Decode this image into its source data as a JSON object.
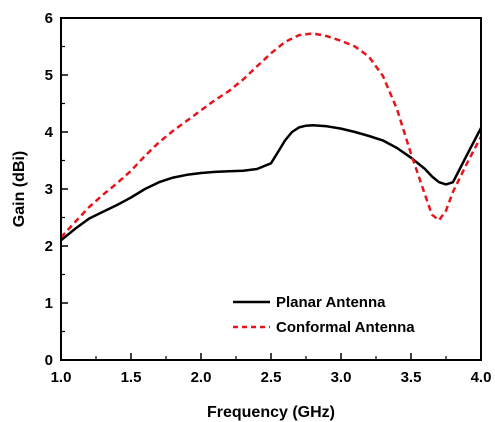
{
  "chart_data": {
    "type": "line",
    "title": "",
    "xlabel": "Frequency (GHz)",
    "ylabel": "Gain (dBi)",
    "xlim": [
      1.0,
      4.0
    ],
    "ylim": [
      0,
      6
    ],
    "xticks": [
      "1.0",
      "1.5",
      "2.0",
      "2.5",
      "3.0",
      "3.5",
      "4.0"
    ],
    "yticks": [
      "0",
      "1",
      "2",
      "3",
      "4",
      "5",
      "6"
    ],
    "grid": false,
    "legend_position": "bottom-right",
    "series": [
      {
        "name": "Planar Antenna",
        "color": "#000000",
        "style": "solid",
        "x": [
          1.0,
          1.1,
          1.2,
          1.3,
          1.4,
          1.5,
          1.6,
          1.7,
          1.8,
          1.9,
          2.0,
          2.1,
          2.2,
          2.3,
          2.4,
          2.5,
          2.55,
          2.6,
          2.65,
          2.7,
          2.75,
          2.8,
          2.9,
          3.0,
          3.1,
          3.2,
          3.3,
          3.4,
          3.5,
          3.6,
          3.65,
          3.7,
          3.75,
          3.8,
          3.9,
          4.0
        ],
        "y": [
          2.1,
          2.3,
          2.48,
          2.6,
          2.72,
          2.85,
          3.0,
          3.12,
          3.2,
          3.25,
          3.28,
          3.3,
          3.31,
          3.32,
          3.35,
          3.45,
          3.65,
          3.85,
          4.0,
          4.08,
          4.11,
          4.12,
          4.1,
          4.06,
          4.0,
          3.93,
          3.85,
          3.72,
          3.55,
          3.35,
          3.22,
          3.12,
          3.08,
          3.12,
          3.6,
          4.07
        ]
      },
      {
        "name": "Conformal Antenna",
        "color": "#e8141b",
        "style": "dashed",
        "x": [
          1.0,
          1.1,
          1.2,
          1.3,
          1.4,
          1.5,
          1.6,
          1.7,
          1.8,
          1.9,
          2.0,
          2.1,
          2.2,
          2.3,
          2.4,
          2.5,
          2.6,
          2.7,
          2.8,
          2.9,
          3.0,
          3.1,
          3.2,
          3.3,
          3.4,
          3.5,
          3.6,
          3.65,
          3.7,
          3.75,
          3.8,
          3.9,
          4.0
        ],
        "y": [
          2.15,
          2.42,
          2.68,
          2.9,
          3.1,
          3.32,
          3.58,
          3.82,
          4.02,
          4.2,
          4.38,
          4.56,
          4.72,
          4.92,
          5.15,
          5.38,
          5.58,
          5.7,
          5.73,
          5.68,
          5.6,
          5.5,
          5.32,
          4.98,
          4.4,
          3.62,
          2.9,
          2.55,
          2.45,
          2.62,
          2.95,
          3.45,
          3.92
        ]
      }
    ]
  }
}
